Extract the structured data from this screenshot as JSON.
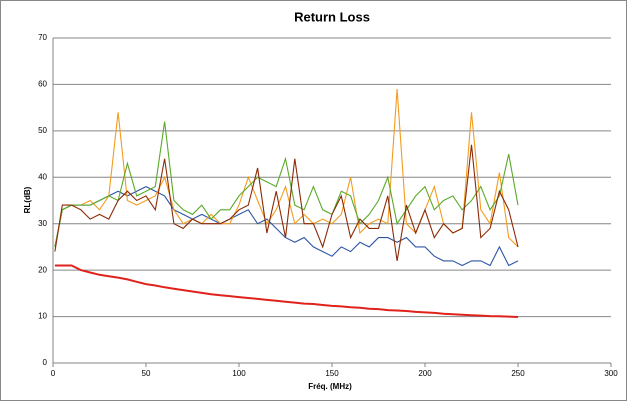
{
  "chart_data": {
    "type": "line",
    "title": "Return Loss",
    "xlabel": "Fréq. (MHz)",
    "ylabel": "RL(dB)",
    "x": [
      1,
      5,
      10,
      15,
      20,
      25,
      30,
      35,
      40,
      45,
      50,
      55,
      60,
      65,
      70,
      75,
      80,
      85,
      90,
      95,
      100,
      105,
      110,
      115,
      120,
      125,
      130,
      135,
      140,
      145,
      150,
      155,
      160,
      165,
      170,
      175,
      180,
      185,
      190,
      195,
      200,
      205,
      210,
      215,
      220,
      225,
      230,
      235,
      240,
      245,
      250
    ],
    "series": [
      {
        "color": "#2e55a4",
        "values": [
          25,
          33,
          34,
          34,
          34,
          35,
          36,
          37,
          36,
          37,
          38,
          37,
          36,
          33,
          32,
          31,
          32,
          31,
          30,
          31,
          32,
          33,
          30,
          31,
          29,
          27,
          26,
          27,
          25,
          24,
          23,
          25,
          24,
          26,
          25,
          27,
          27,
          26,
          27,
          25,
          25,
          23,
          22,
          22,
          21,
          22,
          22,
          21,
          25,
          21,
          22
        ]
      },
      {
        "color": "#f39c1f",
        "values": [
          25,
          33,
          34,
          34,
          35,
          33,
          36,
          54,
          35,
          34,
          35,
          36,
          40,
          33,
          30,
          31,
          30,
          32,
          30,
          30,
          34,
          40,
          35,
          30,
          33,
          38,
          30,
          32,
          30,
          31,
          30,
          32,
          40,
          28,
          30,
          31,
          30,
          59,
          30,
          28,
          33,
          38,
          30,
          28,
          29,
          54,
          33,
          30,
          41,
          27,
          25
        ]
      },
      {
        "color": "#5aaa2a",
        "values": [
          25,
          33,
          34,
          34,
          34,
          35,
          36,
          35,
          43,
          36,
          37,
          38,
          52,
          35,
          33,
          32,
          34,
          31,
          33,
          33,
          36,
          38,
          40,
          39,
          38,
          44,
          34,
          33,
          38,
          33,
          32,
          37,
          36,
          30,
          32,
          35,
          40,
          30,
          33,
          36,
          38,
          33,
          35,
          36,
          33,
          35,
          38,
          33,
          36,
          45,
          34
        ]
      },
      {
        "color": "#8b2a06",
        "values": [
          24,
          34,
          34,
          33,
          31,
          32,
          31,
          35,
          37,
          35,
          36,
          33,
          44,
          30,
          29,
          31,
          30,
          30,
          30,
          31,
          33,
          34,
          42,
          28,
          37,
          27,
          44,
          30,
          30,
          25,
          32,
          36,
          27,
          31,
          29,
          29,
          36,
          22,
          34,
          28,
          33,
          27,
          30,
          28,
          29,
          47,
          27,
          29,
          37,
          33,
          25
        ]
      },
      {
        "color": "#e0221c",
        "values": [
          21,
          21,
          21,
          20,
          19.5,
          19,
          18.7,
          18.4,
          18,
          17.5,
          17,
          16.7,
          16.3,
          16,
          15.7,
          15.4,
          15.1,
          14.8,
          14.6,
          14.4,
          14.2,
          14,
          13.8,
          13.6,
          13.4,
          13.2,
          13,
          12.8,
          12.7,
          12.5,
          12.3,
          12.2,
          12,
          11.9,
          11.7,
          11.6,
          11.4,
          11.3,
          11.2,
          11,
          10.9,
          10.8,
          10.6,
          10.5,
          10.4,
          10.3,
          10.2,
          10.1,
          10.05,
          10,
          9.9
        ]
      }
    ],
    "xlim": [
      0,
      300
    ],
    "xticks": [
      0,
      50,
      100,
      150,
      200,
      250,
      300
    ],
    "ylim": [
      0,
      70
    ],
    "yticks": [
      0,
      10,
      20,
      30,
      40,
      50,
      60,
      70
    ],
    "grid": true
  }
}
